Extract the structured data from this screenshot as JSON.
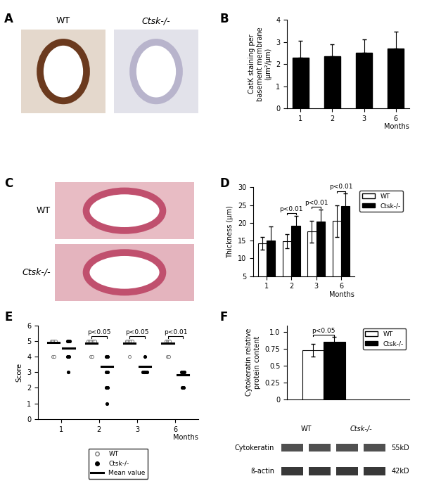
{
  "chart_data": [
    {
      "panel": "B",
      "type": "bar",
      "categories": [
        "1",
        "2",
        "3",
        "6"
      ],
      "x_label": "Months",
      "y_label": "CatK staining per\nbasement membrane\n(µm²/µm)",
      "values": [
        2.3,
        2.35,
        2.5,
        2.7
      ],
      "errors": [
        0.75,
        0.55,
        0.6,
        0.75
      ],
      "color": "#000000",
      "ylim": [
        0,
        4
      ],
      "yticks": [
        0,
        1,
        2,
        3,
        4
      ]
    },
    {
      "panel": "D",
      "type": "bar",
      "categories": [
        "1",
        "2",
        "3",
        "6"
      ],
      "x_label": "Months",
      "y_label": "Thickness (µm)",
      "series": [
        {
          "name": "WT",
          "color": "#ffffff",
          "values": [
            14.2,
            14.8,
            17.5,
            20.5
          ],
          "errors": [
            1.8,
            2.0,
            3.0,
            4.5
          ]
        },
        {
          "name": "Ctsk-/-",
          "color": "#000000",
          "values": [
            15.0,
            19.2,
            20.3,
            24.7
          ],
          "errors": [
            4.0,
            2.8,
            3.5,
            3.5
          ]
        }
      ],
      "annotations": [
        {
          "category": "2",
          "text": "p<0.01"
        },
        {
          "category": "3",
          "text": "p<0.01"
        },
        {
          "category": "6",
          "text": "p<0.01"
        }
      ],
      "ylim": [
        5,
        30
      ],
      "yticks": [
        5,
        10,
        15,
        20,
        25,
        30
      ],
      "legend": "right"
    },
    {
      "panel": "E",
      "type": "scatter",
      "categories": [
        "1",
        "2",
        "3",
        "6"
      ],
      "x_label": "Months",
      "y_label": "Score",
      "series": [
        {
          "name": "WT",
          "marker": "open_circle",
          "color": "#808080",
          "values": [
            [
              5,
              5,
              5,
              5,
              4,
              4
            ],
            [
              5,
              5,
              5,
              5,
              5,
              5,
              4,
              4
            ],
            [
              5,
              5,
              5,
              5,
              5,
              4
            ],
            [
              5,
              5,
              5,
              5,
              4,
              4
            ]
          ],
          "means": [
            4.9,
            4.85,
            4.85,
            4.85
          ]
        },
        {
          "name": "Ctsk-/-",
          "marker": "filled_circle",
          "color": "#000000",
          "values": [
            [
              5,
              5,
              5,
              4,
              4,
              3
            ],
            [
              4,
              4,
              3,
              3,
              2,
              2,
              1
            ],
            [
              4,
              3,
              3,
              3,
              3
            ],
            [
              3,
              3,
              3,
              2,
              2
            ]
          ],
          "means": [
            4.55,
            3.35,
            3.35,
            2.85
          ]
        }
      ],
      "mean_label": "Mean value",
      "annotations": [
        {
          "category": "2",
          "text": "p<0.05"
        },
        {
          "category": "3",
          "text": "p<0.05"
        },
        {
          "category": "6",
          "text": "p<0.01"
        }
      ],
      "ylim": [
        0,
        6
      ],
      "yticks": [
        0,
        1,
        2,
        3,
        4,
        5,
        6
      ],
      "legend": "bottom"
    },
    {
      "panel": "F",
      "type": "bar",
      "categories": [
        null
      ],
      "y_label": "Cytokeratin relative\nprotein content",
      "series": [
        {
          "name": "WT",
          "color": "#ffffff",
          "values": [
            0.73
          ],
          "errors": [
            0.09
          ]
        },
        {
          "name": "Ctsk-/-",
          "color": "#000000",
          "values": [
            0.86
          ],
          "errors": [
            0.07
          ]
        }
      ],
      "annotations": [
        {
          "text": "p<0.05"
        }
      ],
      "ylim": [
        0,
        1.1
      ],
      "yticks": [
        0,
        0.25,
        0.5,
        0.75,
        {
          "value": 1,
          "label": "1.0"
        }
      ],
      "legend": "upper right",
      "tick_labels": "y"
    }
  ],
  "images": [
    {
      "panel": "A",
      "labels": [
        "WT",
        "Ctsk-/-"
      ]
    },
    {
      "panel": "C",
      "labels": [
        "WT",
        "Ctsk-/-"
      ]
    }
  ],
  "blot": {
    "lanes": [
      "WT",
      "Ctsk-/-"
    ],
    "rows": [
      {
        "name": "Cytokeratin",
        "size": "55kD"
      },
      {
        "name": "ß-actin",
        "size": "42kD"
      }
    ]
  }
}
